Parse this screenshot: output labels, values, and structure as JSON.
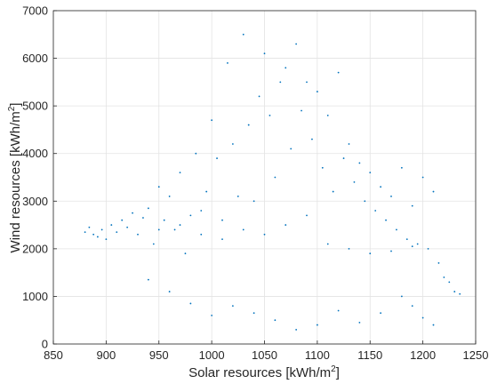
{
  "chart_data": {
    "type": "scatter",
    "title": "",
    "xlabel": "Solar resources [kWh/m",
    "xlabel_sup": "2",
    "xlabel_tail": "]",
    "ylabel": "Wind resources [kWh/m",
    "ylabel_sup": "2",
    "ylabel_tail": "]",
    "xlim": [
      850,
      1250
    ],
    "ylim": [
      0,
      7000
    ],
    "xticks": [
      "850",
      "900",
      "950",
      "1000",
      "1050",
      "1100",
      "1150",
      "1200",
      "1250"
    ],
    "yticks": [
      "0",
      "1000",
      "2000",
      "3000",
      "4000",
      "5000",
      "6000",
      "7000"
    ],
    "grid": true,
    "marker_color": "#0072BD",
    "series": [
      {
        "points": [
          [
            880,
            2350
          ],
          [
            884,
            2450
          ],
          [
            888,
            2300
          ],
          [
            892,
            2250
          ],
          [
            896,
            2400
          ],
          [
            900,
            2200
          ],
          [
            905,
            2500
          ],
          [
            910,
            2350
          ],
          [
            915,
            2600
          ],
          [
            920,
            2450
          ],
          [
            925,
            2750
          ],
          [
            930,
            2300
          ],
          [
            935,
            2650
          ],
          [
            940,
            2850
          ],
          [
            945,
            2100
          ],
          [
            950,
            3300
          ],
          [
            955,
            2600
          ],
          [
            960,
            3100
          ],
          [
            965,
            2400
          ],
          [
            970,
            3600
          ],
          [
            975,
            1900
          ],
          [
            980,
            2700
          ],
          [
            985,
            4000
          ],
          [
            990,
            2800
          ],
          [
            995,
            3200
          ],
          [
            1000,
            4700
          ],
          [
            1005,
            3900
          ],
          [
            1010,
            2600
          ],
          [
            1015,
            5900
          ],
          [
            1020,
            4200
          ],
          [
            1025,
            3100
          ],
          [
            1030,
            6500
          ],
          [
            1035,
            4600
          ],
          [
            1040,
            3000
          ],
          [
            1045,
            5200
          ],
          [
            1050,
            6100
          ],
          [
            1055,
            4800
          ],
          [
            1060,
            3500
          ],
          [
            1065,
            5500
          ],
          [
            1070,
            5800
          ],
          [
            1075,
            4100
          ],
          [
            1080,
            6300
          ],
          [
            1085,
            4900
          ],
          [
            1090,
            5500
          ],
          [
            1095,
            4300
          ],
          [
            1100,
            5300
          ],
          [
            1105,
            3700
          ],
          [
            1110,
            4800
          ],
          [
            1115,
            3200
          ],
          [
            1120,
            5700
          ],
          [
            1125,
            3900
          ],
          [
            1130,
            4200
          ],
          [
            1135,
            3400
          ],
          [
            1140,
            3800
          ],
          [
            1145,
            3000
          ],
          [
            1150,
            3600
          ],
          [
            1155,
            2800
          ],
          [
            1160,
            3300
          ],
          [
            1165,
            2600
          ],
          [
            1170,
            3100
          ],
          [
            1175,
            2400
          ],
          [
            1180,
            3700
          ],
          [
            1185,
            2200
          ],
          [
            1190,
            2900
          ],
          [
            1195,
            2100
          ],
          [
            1200,
            3500
          ],
          [
            1205,
            2000
          ],
          [
            1210,
            3200
          ],
          [
            1215,
            1700
          ],
          [
            1220,
            1400
          ],
          [
            1225,
            1300
          ],
          [
            1230,
            1100
          ],
          [
            1235,
            1050
          ],
          [
            1210,
            400
          ],
          [
            1200,
            550
          ],
          [
            1190,
            800
          ],
          [
            1180,
            1000
          ],
          [
            1160,
            650
          ],
          [
            1140,
            450
          ],
          [
            1120,
            700
          ],
          [
            1100,
            400
          ],
          [
            1080,
            300
          ],
          [
            1060,
            500
          ],
          [
            1040,
            650
          ],
          [
            1020,
            800
          ],
          [
            1000,
            600
          ],
          [
            980,
            850
          ],
          [
            960,
            1100
          ],
          [
            940,
            1350
          ],
          [
            1090,
            2700
          ],
          [
            1070,
            2500
          ],
          [
            1050,
            2300
          ],
          [
            1030,
            2400
          ],
          [
            1110,
            2100
          ],
          [
            1130,
            2000
          ],
          [
            1150,
            1900
          ],
          [
            1170,
            1950
          ],
          [
            1190,
            2050
          ],
          [
            1010,
            2200
          ],
          [
            990,
            2300
          ],
          [
            970,
            2500
          ],
          [
            950,
            2400
          ]
        ]
      }
    ]
  }
}
